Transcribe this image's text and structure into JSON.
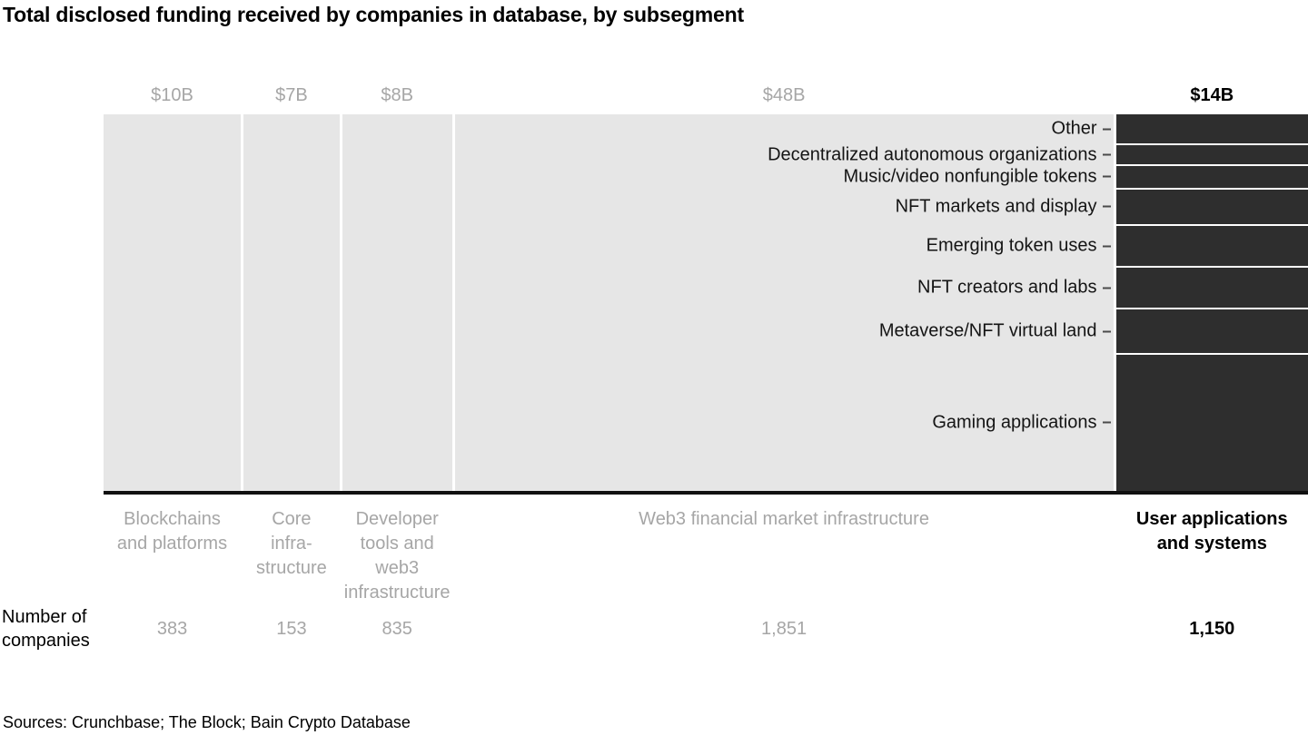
{
  "title": "Total disclosed funding received by companies in database, by subsegment",
  "source_note": "Sources: Crunchbase; The Block; Bain Crypto Database",
  "companies_row_label": "Number of\ncompanies",
  "colors": {
    "light_bar": "#e6e6e6",
    "dark_bar": "#2e2e2e",
    "gray_text": "#a6a6a6",
    "emphasis_text": "#000000",
    "axis_line": "#101010"
  },
  "chart_data": {
    "type": "bar",
    "subtype": "variable-width stacked bar (marimekko-style)",
    "unit": "USD billions",
    "title": "Total disclosed funding received by companies in database, by subsegment",
    "total_funding_b": 87,
    "legend_position": "none",
    "grid": false,
    "columns": [
      {
        "label": "Blockchains\nand platforms",
        "funding_label": "$10B",
        "funding_b": 10,
        "companies": "383",
        "emphasis": false
      },
      {
        "label": "Core\ninfra-\nstructure",
        "funding_label": "$7B",
        "funding_b": 7,
        "companies": "153",
        "emphasis": false
      },
      {
        "label": "Developer\ntools and\nweb3\ninfrastructure",
        "funding_label": "$8B",
        "funding_b": 8,
        "companies": "835",
        "emphasis": false
      },
      {
        "label": "Web3 financial market infrastructure",
        "funding_label": "$48B",
        "funding_b": 48,
        "companies": "1,851",
        "emphasis": false
      },
      {
        "label": "User applications\nand systems",
        "funding_label": "$14B",
        "funding_b": 14,
        "companies": "1,150",
        "emphasis": true,
        "segments": [
          {
            "label": "Other",
            "value_b": 1.1
          },
          {
            "label": "Decentralized autonomous organizations",
            "value_b": 0.7
          },
          {
            "label": "Music/video nonfungible tokens",
            "value_b": 0.8
          },
          {
            "label": "NFT markets and display",
            "value_b": 1.3
          },
          {
            "label": "Emerging token uses",
            "value_b": 1.5
          },
          {
            "label": "NFT creators and labs",
            "value_b": 1.5
          },
          {
            "label": "Metaverse/NFT virtual land",
            "value_b": 1.6
          },
          {
            "label": "Gaming applications",
            "value_b": 5.1
          }
        ]
      }
    ]
  }
}
